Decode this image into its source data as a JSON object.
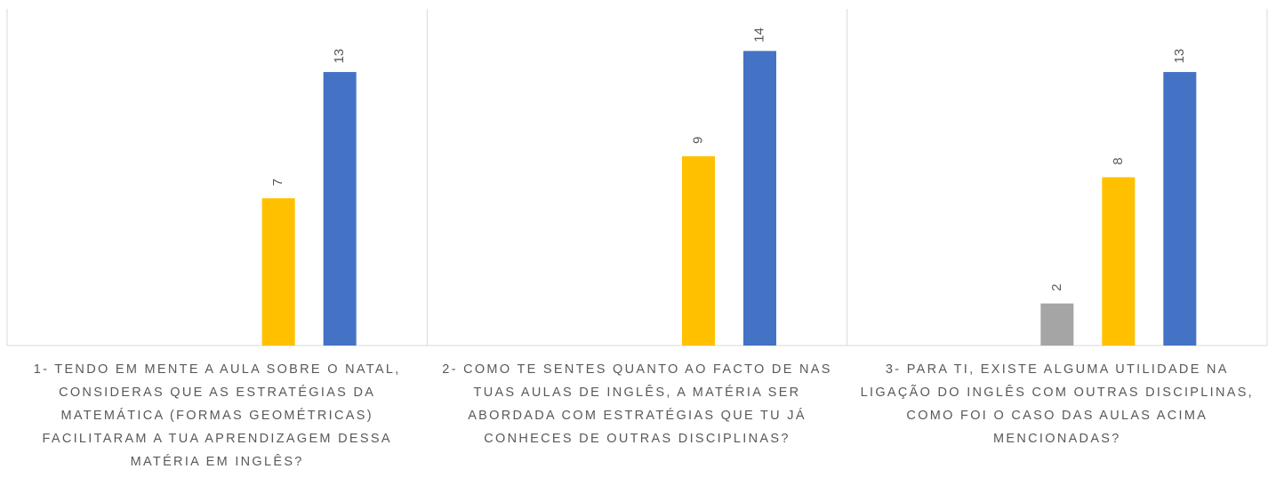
{
  "chart_data": {
    "type": "bar",
    "categories": [
      "1- TENDO EM MENTE A AULA SOBRE O NATAL, CONSIDERAS QUE AS ESTRATÉGIAS DA MATEMÁTICA (FORMAS GEOMÉTRICAS) FACILITARAM A TUA APRENDIZAGEM DESSA MATÉRIA EM INGLÊS?",
      "2- COMO TE SENTES QUANTO AO FACTO DE NAS TUAS AULAS DE INGLÊS, A MATÉRIA SER ABORDADA COM ESTRATÉGIAS QUE TU JÁ CONHECES DE OUTRAS DISCIPLINAS?",
      "3- PARA TI, EXISTE ALGUMA UTILIDADE NA LIGAÇÃO DO INGLÊS COM OUTRAS DISCIPLINAS, COMO FOI O CASO DAS AULAS ACIMA MENCIONADAS?"
    ],
    "series": [
      {
        "color": "#a5a5a5",
        "values": [
          null,
          null,
          2
        ]
      },
      {
        "color": "#ffc000",
        "values": [
          7,
          9,
          8
        ]
      },
      {
        "color": "#4472c4",
        "values": [
          13,
          14,
          13
        ]
      }
    ],
    "ylim": [
      0,
      16
    ]
  }
}
